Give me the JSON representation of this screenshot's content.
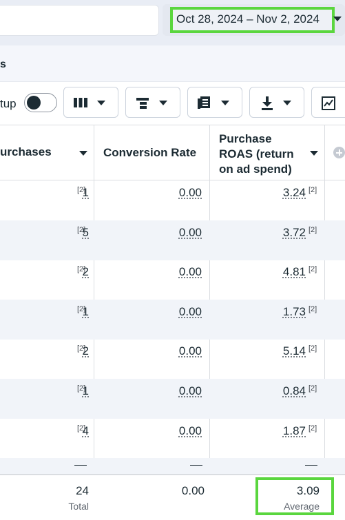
{
  "date_range": {
    "label": "Oct 28, 2024 – Nov 2, 2024"
  },
  "section": {
    "title": "s"
  },
  "toolbar": {
    "setup_label": "tup",
    "toggle_on": false,
    "buttons": [
      "columns-icon",
      "breakdown-icon",
      "reports-icon",
      "export-icon",
      "chart-icon"
    ]
  },
  "table": {
    "columns": [
      {
        "label_lines": [
          "urchases"
        ]
      },
      {
        "label_lines": [
          "Conversion Rate"
        ]
      },
      {
        "label_lines": [
          "Purchase",
          "ROAS (return",
          "on ad spend)"
        ]
      }
    ],
    "rows": [
      {
        "purchases": "1",
        "conversion_rate": "0.00",
        "roas": "3.24"
      },
      {
        "purchases": "5",
        "conversion_rate": "0.00",
        "roas": "3.72"
      },
      {
        "purchases": "2",
        "conversion_rate": "0.00",
        "roas": "4.81"
      },
      {
        "purchases": "1",
        "conversion_rate": "0.00",
        "roas": "1.73"
      },
      {
        "purchases": "2",
        "conversion_rate": "0.00",
        "roas": "5.14"
      },
      {
        "purchases": "1",
        "conversion_rate": "0.00",
        "roas": "0.84"
      },
      {
        "purchases": "4",
        "conversion_rate": "0.00",
        "roas": "1.87"
      }
    ],
    "footnote": "[2]",
    "partial_row": {
      "purchases": "—",
      "conversion_rate": "—",
      "roas": "—"
    },
    "footer": {
      "purchases": {
        "value": "24",
        "label": "Total"
      },
      "conversion_rate": {
        "value": "0.00"
      },
      "roas": {
        "value": "3.09",
        "label": "Average"
      }
    }
  },
  "colors": {
    "highlight": "#5ad63e",
    "text": "#1c2b33",
    "alt_row": "#f1f4f9"
  }
}
